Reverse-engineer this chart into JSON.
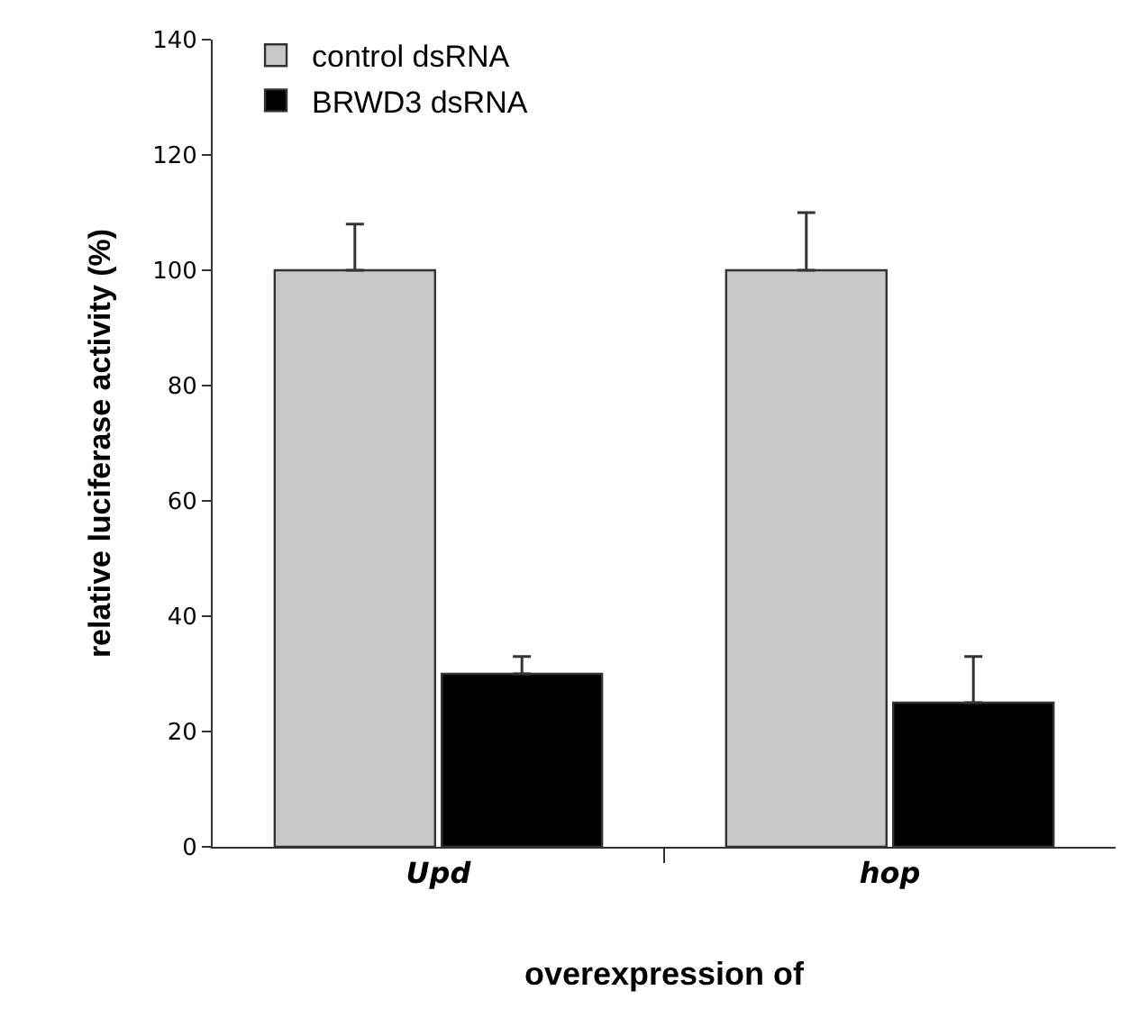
{
  "chart_data": {
    "type": "bar",
    "xlabel": "overexpression of",
    "ylabel": "relative luciferase activity (%)",
    "categories": [
      "Upd",
      "hop"
    ],
    "series": [
      {
        "name": "control dsRNA",
        "color": "#c8c8c8",
        "values": [
          100,
          100
        ],
        "errors": [
          [
            100,
            108
          ],
          [
            100,
            110
          ]
        ]
      },
      {
        "name": "BRWD3 dsRNA",
        "color": "#000000",
        "values": [
          30,
          25
        ],
        "errors": [
          [
            30,
            33
          ],
          [
            25,
            33
          ]
        ]
      }
    ],
    "ylim": [
      0,
      140
    ],
    "yticks": [
      0,
      20,
      40,
      60,
      80,
      100,
      120,
      140
    ],
    "grid": false,
    "legend": "top left"
  }
}
